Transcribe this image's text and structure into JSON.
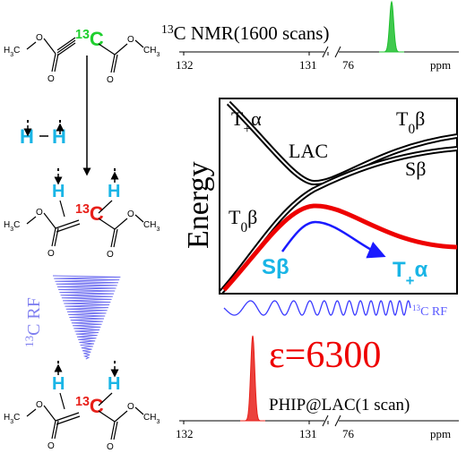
{
  "top_spectrum": {
    "title": [
      "13",
      "C NMR(1600 scans)"
    ],
    "axis_labels": [
      "132",
      "131",
      "76",
      "ppm"
    ]
  },
  "energy_diagram": {
    "y_label": "Energy",
    "levels": {
      "upper_left": [
        "T",
        "+",
        "α"
      ],
      "crossing": "LAC",
      "upper_right": [
        "T",
        "0",
        "β"
      ],
      "right_lower": "Sβ",
      "left_lower": [
        "T",
        "0",
        "β"
      ],
      "start": "Sβ",
      "end": [
        "T",
        "+",
        "α"
      ]
    },
    "rf_label": [
      "13",
      "C RF"
    ]
  },
  "bottom_spectrum": {
    "enhancement": "ε=6300",
    "title": "PHIP@LAC(1 scan)",
    "axis_labels": [
      "132",
      "131",
      "76",
      "ppm"
    ]
  },
  "molecules": {
    "reactant": {
      "methyl_left": [
        "H",
        "3",
        "C"
      ],
      "oxygens": [
        "O",
        "O",
        "O",
        "O"
      ],
      "carbon": [
        "13",
        "C"
      ],
      "methyl_right": [
        "CH",
        "3"
      ]
    },
    "hydrogen": [
      "H",
      "H"
    ],
    "intermediate": {
      "methyl_left": [
        "H",
        "3",
        "C"
      ],
      "oxygens": [
        "O",
        "O",
        "O",
        "O"
      ],
      "carbon": [
        "13",
        "C"
      ],
      "methyl_right": [
        "CH",
        "3"
      ],
      "hydrogens": [
        "H",
        "H"
      ]
    },
    "rf_label": [
      "13",
      "C RF"
    ],
    "product": {
      "methyl_left": [
        "H",
        "3",
        "C"
      ],
      "oxygens": [
        "O",
        "O",
        "O",
        "O"
      ],
      "carbon": [
        "13",
        "C"
      ],
      "methyl_right": [
        "CH",
        "3"
      ],
      "hydrogens": [
        "H",
        "H"
      ]
    }
  }
}
